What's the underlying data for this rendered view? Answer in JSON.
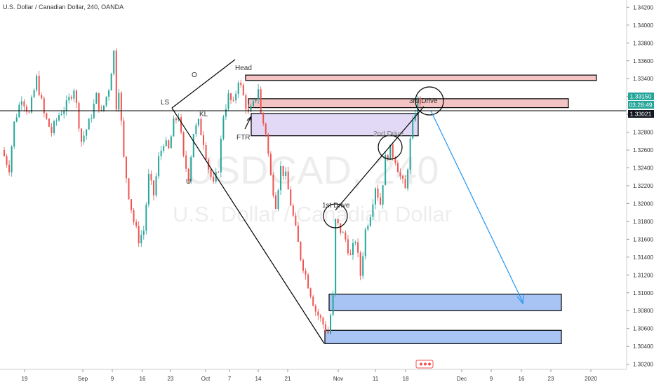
{
  "header": {
    "symbol_line": "U.S. Dollar / Canadian Dollar, 240, OANDA"
  },
  "watermark": {
    "ticker": "USDCAD, 240",
    "name": "U.S. Dollar / Canadian Dollar"
  },
  "price_labels": {
    "last_price": "1.33150",
    "countdown": "03:28:49",
    "line_price": "1.33021"
  },
  "colors": {
    "bull": "#26a69a",
    "bear": "#ef5350",
    "supply_zone": "#f4c4c4",
    "flip_zone": "#e1d9f5",
    "demand_zone": "#a8c4f5",
    "projection_arrow": "#2196f3",
    "last_price_bg": "#26a69a",
    "line_price_bg": "#131722"
  },
  "annotations": {
    "head": "Head",
    "o": "O",
    "ls": "LS",
    "kl": "KL",
    "u": "U",
    "ftr": "FTR",
    "drive1": "1st Drive",
    "drive2": "2nd Drive",
    "drive3": "3rd Drive"
  },
  "chart_data": {
    "type": "candlestick",
    "symbol": "USDCAD",
    "timeframe": "240",
    "source": "OANDA",
    "ylim": [
      1.3015,
      1.3425
    ],
    "y_ticks": [
      "1.34200",
      "1.34000",
      "1.33800",
      "1.33600",
      "1.33400",
      "1.33200",
      "1.33000",
      "1.32800",
      "1.32600",
      "1.32400",
      "1.32200",
      "1.32000",
      "1.31800",
      "1.31600",
      "1.31400",
      "1.31200",
      "1.31000",
      "1.30800",
      "1.30600",
      "1.30400",
      "1.30200"
    ],
    "x_ticks": [
      "19",
      "Sep",
      "9",
      "16",
      "23",
      "Oct",
      "7",
      "14",
      "21",
      "Nov",
      "11",
      "18",
      "Dec",
      "9",
      "16",
      "23",
      "2020"
    ],
    "price_path": [
      [
        0,
        1.326
      ],
      [
        3,
        1.324
      ],
      [
        5,
        1.329
      ],
      [
        8,
        1.332
      ],
      [
        11,
        1.33
      ],
      [
        14,
        1.334
      ],
      [
        17,
        1.33
      ],
      [
        20,
        1.328
      ],
      [
        23,
        1.33
      ],
      [
        26,
        1.331
      ],
      [
        29,
        1.333
      ],
      [
        32,
        1.327
      ],
      [
        35,
        1.329
      ],
      [
        38,
        1.332
      ],
      [
        40,
        1.33
      ],
      [
        43,
        1.333
      ],
      [
        45,
        1.337
      ],
      [
        46,
        1.331
      ],
      [
        47,
        1.333
      ],
      [
        49,
        1.325
      ],
      [
        51,
        1.321
      ],
      [
        53,
        1.318
      ],
      [
        55,
        1.316
      ],
      [
        57,
        1.317
      ],
      [
        59,
        1.323
      ],
      [
        61,
        1.321
      ],
      [
        63,
        1.325
      ],
      [
        65,
        1.327
      ],
      [
        67,
        1.326
      ],
      [
        69,
        1.329
      ],
      [
        71,
        1.33
      ],
      [
        73,
        1.325
      ],
      [
        75,
        1.323
      ],
      [
        77,
        1.328
      ],
      [
        79,
        1.329
      ],
      [
        81,
        1.327
      ],
      [
        83,
        1.324
      ],
      [
        85,
        1.322
      ],
      [
        87,
        1.324
      ],
      [
        89,
        1.33
      ],
      [
        91,
        1.332
      ],
      [
        93,
        1.331
      ],
      [
        95,
        1.334
      ],
      [
        97,
        1.332
      ],
      [
        99,
        1.33
      ],
      [
        101,
        1.331
      ],
      [
        103,
        1.333
      ],
      [
        104,
        1.33
      ],
      [
        106,
        1.328
      ],
      [
        108,
        1.323
      ],
      [
        110,
        1.32
      ],
      [
        112,
        1.324
      ],
      [
        114,
        1.323
      ],
      [
        116,
        1.32
      ],
      [
        118,
        1.317
      ],
      [
        120,
        1.314
      ],
      [
        122,
        1.312
      ],
      [
        124,
        1.31
      ],
      [
        126,
        1.308
      ],
      [
        128,
        1.307
      ],
      [
        130,
        1.306
      ],
      [
        131,
        1.3055
      ],
      [
        132,
        1.3075
      ],
      [
        133,
        1.3095
      ],
      [
        134,
        1.318
      ],
      [
        136,
        1.317
      ],
      [
        138,
        1.316
      ],
      [
        140,
        1.314
      ],
      [
        142,
        1.316
      ],
      [
        144,
        1.312
      ],
      [
        146,
        1.317
      ],
      [
        148,
        1.319
      ],
      [
        150,
        1.322
      ],
      [
        152,
        1.32
      ],
      [
        154,
        1.325
      ],
      [
        156,
        1.326
      ],
      [
        158,
        1.325
      ],
      [
        160,
        1.323
      ],
      [
        162,
        1.3215
      ],
      [
        164,
        1.327
      ],
      [
        166,
        1.3305
      ],
      [
        167,
        1.3315
      ]
    ],
    "zones": [
      {
        "name": "Head supply zone",
        "top": 1.3344,
        "bottom": 1.3338
      },
      {
        "name": "3rd drive supply zone",
        "top": 1.33175,
        "bottom": 1.33075
      },
      {
        "name": "FTR zone",
        "top": 1.3301,
        "bottom": 1.3276
      },
      {
        "name": "Upper demand zone",
        "top": 1.30985,
        "bottom": 1.308
      },
      {
        "name": "Lower demand zone",
        "top": 1.3058,
        "bottom": 1.3043
      }
    ],
    "hline": 1.33021,
    "grid": false
  }
}
